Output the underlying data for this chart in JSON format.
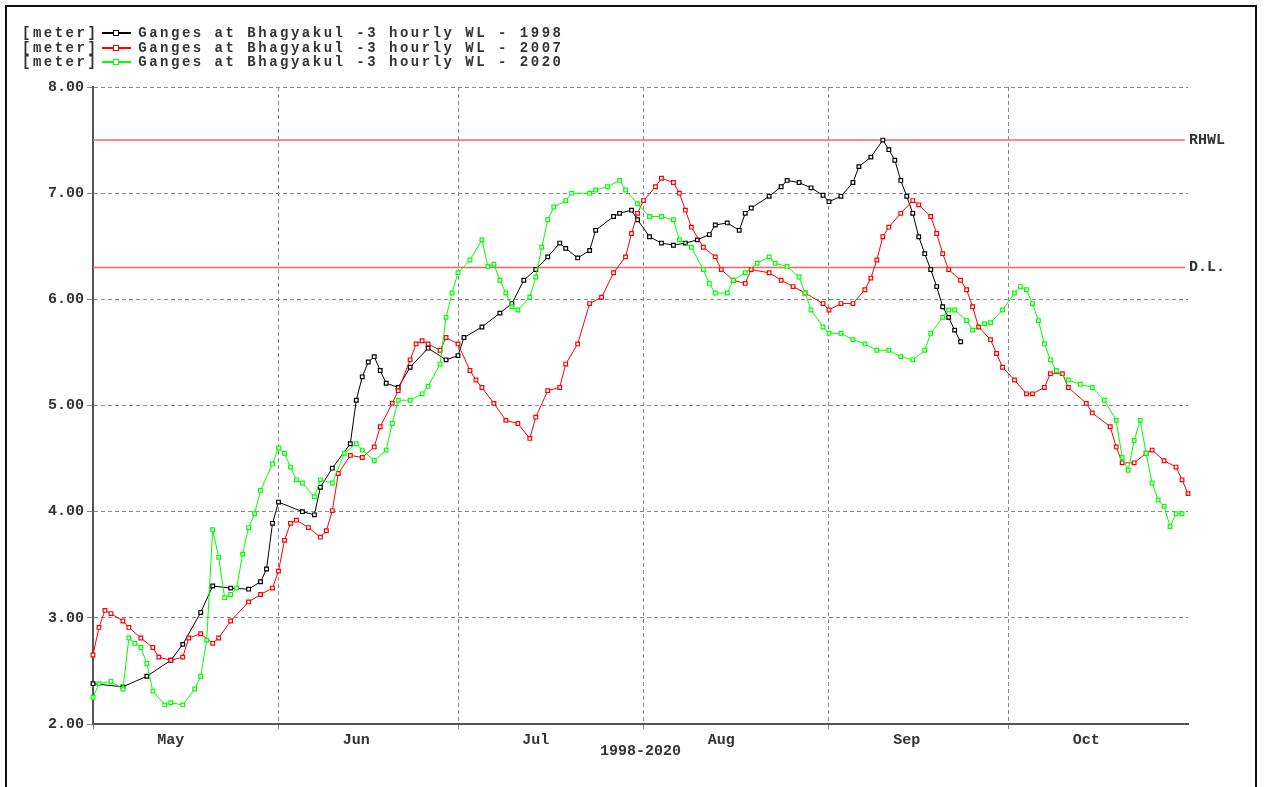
{
  "chart_data": {
    "type": "line",
    "xlabel": "1998-2020",
    "ylabel": "[meter]",
    "xlim": [
      "--05-01",
      "--10-31"
    ],
    "ylim": [
      2,
      8
    ],
    "xticks": [
      {
        "value": "--05-01",
        "label": null
      },
      {
        "value": "--05-14",
        "label": "May"
      },
      {
        "value": "--06-01",
        "label": null
      },
      {
        "value": "--06-14",
        "label": "Jun"
      },
      {
        "value": "--07-01",
        "label": null
      },
      {
        "value": "--07-14",
        "label": "Jul"
      },
      {
        "value": "--08-01",
        "label": null
      },
      {
        "value": "--08-14",
        "label": "Aug"
      },
      {
        "value": "--09-01",
        "label": null
      },
      {
        "value": "--09-14",
        "label": "Sep"
      },
      {
        "value": "--10-01",
        "label": null
      },
      {
        "value": "--10-14",
        "label": "Oct"
      }
    ],
    "yticks": [
      {
        "value": 2,
        "label": "2.00"
      },
      {
        "value": 3,
        "label": "3.00"
      },
      {
        "value": 4,
        "label": "4.00"
      },
      {
        "value": 5,
        "label": "5.00"
      },
      {
        "value": 6,
        "label": "6.00"
      },
      {
        "value": 7,
        "label": "7.00"
      },
      {
        "value": 8,
        "label": "8.00"
      }
    ],
    "grid": true,
    "legend": "top left",
    "marker": "square",
    "line_style": "solid",
    "ref_lines": [
      {
        "axis": "y",
        "value": 7.5,
        "label": "RHWL",
        "color": "#ff6060"
      },
      {
        "axis": "y",
        "value": 6.3,
        "label": "D.L.",
        "color": "#ff6060"
      }
    ],
    "series": [
      {
        "name": "Ganges at Bhagyakul -3 hourly WL - 1998",
        "color": "#000000",
        "x": [
          "--05-01",
          "--05-06",
          "--05-10",
          "--05-14",
          "--05-16",
          "--05-19",
          "--05-21",
          "--05-24",
          "--05-27",
          "--05-29",
          "--05-30",
          "--05-31",
          "--06-01",
          "--06-05",
          "--06-07",
          "--06-08",
          "--06-10",
          "--06-13",
          "--06-14",
          "--06-15",
          "--06-16",
          "--06-17",
          "--06-18",
          "--06-19",
          "--06-21",
          "--06-23",
          "--06-26",
          "--06-29",
          "--07-01",
          "--07-02",
          "--07-05",
          "--07-08",
          "--07-10",
          "--07-12",
          "--07-14",
          "--07-16",
          "--07-18",
          "--07-19",
          "--07-21",
          "--07-23",
          "--07-24",
          "--07-27",
          "--07-28",
          "--07-30",
          "--07-31",
          "--08-02",
          "--08-04",
          "--08-06",
          "--08-08",
          "--08-10",
          "--08-12",
          "--08-13",
          "--08-15",
          "--08-17",
          "--08-18",
          "--08-19",
          "--08-22",
          "--08-24",
          "--08-25",
          "--08-27",
          "--08-29",
          "--08-31",
          "--09-01",
          "--09-03",
          "--09-05",
          "--09-06",
          "--09-08",
          "--09-10",
          "--09-11",
          "--09-12",
          "--09-13",
          "--09-14",
          "--09-15",
          "--09-16",
          "--09-17",
          "--09-18",
          "--09-19",
          "--09-20",
          "--09-21",
          "--09-22",
          "--09-23"
        ],
        "values": [
          2.38,
          2.35,
          2.45,
          2.6,
          2.75,
          3.05,
          3.3,
          3.28,
          3.27,
          3.34,
          3.46,
          3.89,
          4.09,
          4.0,
          3.97,
          4.23,
          4.41,
          4.64,
          5.05,
          5.27,
          5.41,
          5.46,
          5.33,
          5.21,
          5.17,
          5.36,
          5.54,
          5.43,
          5.47,
          5.64,
          5.74,
          5.87,
          5.96,
          6.18,
          6.28,
          6.4,
          6.53,
          6.48,
          6.39,
          6.46,
          6.65,
          6.78,
          6.81,
          6.84,
          6.75,
          6.59,
          6.53,
          6.51,
          6.53,
          6.56,
          6.61,
          6.7,
          6.72,
          6.65,
          6.81,
          6.86,
          6.97,
          7.06,
          7.12,
          7.1,
          7.05,
          6.98,
          6.92,
          6.97,
          7.1,
          7.25,
          7.34,
          7.5,
          7.41,
          7.31,
          7.12,
          6.97,
          6.81,
          6.59,
          6.43,
          6.28,
          6.12,
          5.93,
          5.83,
          5.71,
          5.6
        ]
      },
      {
        "name": "Ganges at Bhagyakul -3 hourly WL - 2007",
        "color": "#ff0000",
        "x": [
          "--05-01",
          "--05-02",
          "--05-03",
          "--05-04",
          "--05-06",
          "--05-07",
          "--05-09",
          "--05-11",
          "--05-12",
          "--05-14",
          "--05-16",
          "--05-17",
          "--05-19",
          "--05-21",
          "--05-22",
          "--05-24",
          "--05-27",
          "--05-29",
          "--05-31",
          "--06-01",
          "--06-02",
          "--06-03",
          "--06-04",
          "--06-06",
          "--06-08",
          "--06-09",
          "--06-10",
          "--06-11",
          "--06-13",
          "--06-15",
          "--06-17",
          "--06-18",
          "--06-20",
          "--06-21",
          "--06-23",
          "--06-24",
          "--06-25",
          "--06-26",
          "--06-28",
          "--06-29",
          "--07-01",
          "--07-03",
          "--07-04",
          "--07-05",
          "--07-07",
          "--07-09",
          "--07-11",
          "--07-13",
          "--07-14",
          "--07-16",
          "--07-18",
          "--07-19",
          "--07-21",
          "--07-23",
          "--07-25",
          "--07-27",
          "--07-29",
          "--07-30",
          "--07-31",
          "--08-01",
          "--08-03",
          "--08-04",
          "--08-06",
          "--08-07",
          "--08-08",
          "--08-09",
          "--08-11",
          "--08-13",
          "--08-14",
          "--08-16",
          "--08-18",
          "--08-19",
          "--08-22",
          "--08-24",
          "--08-26",
          "--08-28",
          "--08-31",
          "--09-01",
          "--09-03",
          "--09-05",
          "--09-07",
          "--09-08",
          "--09-09",
          "--09-10",
          "--09-11",
          "--09-13",
          "--09-15",
          "--09-16",
          "--09-18",
          "--09-19",
          "--09-20",
          "--09-21",
          "--09-23",
          "--09-24",
          "--09-25",
          "--09-26",
          "--09-28",
          "--09-29",
          "--09-30",
          "--10-02",
          "--10-04",
          "--10-05",
          "--10-07",
          "--10-08",
          "--10-10",
          "--10-11",
          "--10-14",
          "--10-15",
          "--10-18",
          "--10-19",
          "--10-20",
          "--10-22",
          "--10-24",
          "--10-25",
          "--10-27",
          "--10-29",
          "--10-30",
          "--10-31"
        ],
        "values": [
          2.65,
          2.91,
          3.07,
          3.04,
          2.97,
          2.91,
          2.81,
          2.72,
          2.63,
          2.6,
          2.63,
          2.81,
          2.85,
          2.76,
          2.81,
          2.97,
          3.15,
          3.22,
          3.28,
          3.44,
          3.73,
          3.89,
          3.92,
          3.85,
          3.76,
          3.82,
          4.01,
          4.36,
          4.53,
          4.51,
          4.61,
          4.8,
          5.02,
          5.14,
          5.43,
          5.58,
          5.61,
          5.58,
          5.52,
          5.64,
          5.58,
          5.33,
          5.24,
          5.17,
          5.02,
          4.86,
          4.83,
          4.69,
          4.89,
          5.14,
          5.17,
          5.39,
          5.58,
          5.96,
          6.02,
          6.25,
          6.4,
          6.62,
          6.81,
          6.93,
          7.06,
          7.14,
          7.1,
          7.0,
          6.84,
          6.68,
          6.49,
          6.4,
          6.28,
          6.18,
          6.15,
          6.28,
          6.25,
          6.18,
          6.12,
          6.06,
          5.96,
          5.9,
          5.96,
          5.96,
          6.09,
          6.2,
          6.37,
          6.59,
          6.68,
          6.81,
          6.93,
          6.89,
          6.78,
          6.62,
          6.43,
          6.28,
          6.18,
          6.09,
          5.93,
          5.74,
          5.62,
          5.49,
          5.36,
          5.24,
          5.11,
          5.11,
          5.17,
          5.3,
          5.3,
          5.17,
          5.02,
          4.93,
          4.8,
          4.61,
          4.46,
          4.46,
          4.55,
          4.58,
          4.48,
          4.42,
          4.3,
          4.17
        ]
      },
      {
        "name": "Ganges at Bhagyakul -3 hourly WL - 2020",
        "color": "#00ff00",
        "x": [
          "--05-01",
          "--05-02",
          "--05-04",
          "--05-06",
          "--05-07",
          "--05-08",
          "--05-09",
          "--05-10",
          "--05-11",
          "--05-13",
          "--05-14",
          "--05-16",
          "--05-18",
          "--05-19",
          "--05-20",
          "--05-21",
          "--05-22",
          "--05-23",
          "--05-24",
          "--05-25",
          "--05-26",
          "--05-27",
          "--05-28",
          "--05-29",
          "--05-31",
          "--06-01",
          "--06-02",
          "--06-03",
          "--06-04",
          "--06-05",
          "--06-07",
          "--06-08",
          "--06-10",
          "--06-12",
          "--06-14",
          "--06-15",
          "--06-17",
          "--06-19",
          "--06-20",
          "--06-21",
          "--06-23",
          "--06-25",
          "--06-26",
          "--06-28",
          "--06-29",
          "--06-30",
          "--07-01",
          "--07-03",
          "--07-05",
          "--07-06",
          "--07-07",
          "--07-08",
          "--07-09",
          "--07-10",
          "--07-11",
          "--07-13",
          "--07-14",
          "--07-15",
          "--07-16",
          "--07-17",
          "--07-19",
          "--07-20",
          "--07-23",
          "--07-24",
          "--07-26",
          "--07-28",
          "--07-29",
          "--07-31",
          "--08-02",
          "--08-04",
          "--08-06",
          "--08-07",
          "--08-09",
          "--08-11",
          "--08-12",
          "--08-13",
          "--08-15",
          "--08-16",
          "--08-18",
          "--08-20",
          "--08-22",
          "--08-23",
          "--08-25",
          "--08-27",
          "--08-28",
          "--08-29",
          "--08-31",
          "--09-01",
          "--09-03",
          "--09-05",
          "--09-07",
          "--09-09",
          "--09-11",
          "--09-13",
          "--09-15",
          "--09-17",
          "--09-18",
          "--09-20",
          "--09-21",
          "--09-22",
          "--09-24",
          "--09-25",
          "--09-27",
          "--09-28",
          "--09-30",
          "--10-02",
          "--10-03",
          "--10-04",
          "--10-05",
          "--10-06",
          "--10-07",
          "--10-08",
          "--10-09",
          "--10-11",
          "--10-13",
          "--10-15",
          "--10-17",
          "--10-19",
          "--10-20",
          "--10-21",
          "--10-22",
          "--10-23",
          "--10-24",
          "--10-25",
          "--10-26",
          "--10-27",
          "--10-28",
          "--10-29",
          "--10-30"
        ],
        "values": [
          2.25,
          2.38,
          2.4,
          2.33,
          2.81,
          2.76,
          2.72,
          2.57,
          2.31,
          2.18,
          2.2,
          2.18,
          2.33,
          2.45,
          2.79,
          3.83,
          3.57,
          3.19,
          3.22,
          3.28,
          3.6,
          3.85,
          3.98,
          4.2,
          4.45,
          4.6,
          4.55,
          4.42,
          4.3,
          4.27,
          4.14,
          4.3,
          4.27,
          4.55,
          4.64,
          4.58,
          4.48,
          4.58,
          4.83,
          5.05,
          5.05,
          5.11,
          5.18,
          5.39,
          5.83,
          6.06,
          6.25,
          6.37,
          6.56,
          6.31,
          6.33,
          6.18,
          6.06,
          5.93,
          5.9,
          6.02,
          6.21,
          6.49,
          6.75,
          6.87,
          6.93,
          7.0,
          7.0,
          7.03,
          7.06,
          7.12,
          7.03,
          6.9,
          6.78,
          6.78,
          6.75,
          6.56,
          6.49,
          6.28,
          6.15,
          6.06,
          6.06,
          6.18,
          6.25,
          6.34,
          6.4,
          6.34,
          6.31,
          6.21,
          6.06,
          5.9,
          5.74,
          5.68,
          5.68,
          5.62,
          5.58,
          5.52,
          5.52,
          5.46,
          5.43,
          5.52,
          5.68,
          5.83,
          5.9,
          5.9,
          5.8,
          5.71,
          5.77,
          5.78,
          5.9,
          6.06,
          6.12,
          6.09,
          5.96,
          5.8,
          5.58,
          5.43,
          5.33,
          5.24,
          5.2,
          5.17,
          5.05,
          4.86,
          4.51,
          4.39,
          4.67,
          4.86,
          4.55,
          4.27,
          4.11,
          4.05,
          3.86,
          3.98,
          3.98
        ]
      }
    ]
  }
}
